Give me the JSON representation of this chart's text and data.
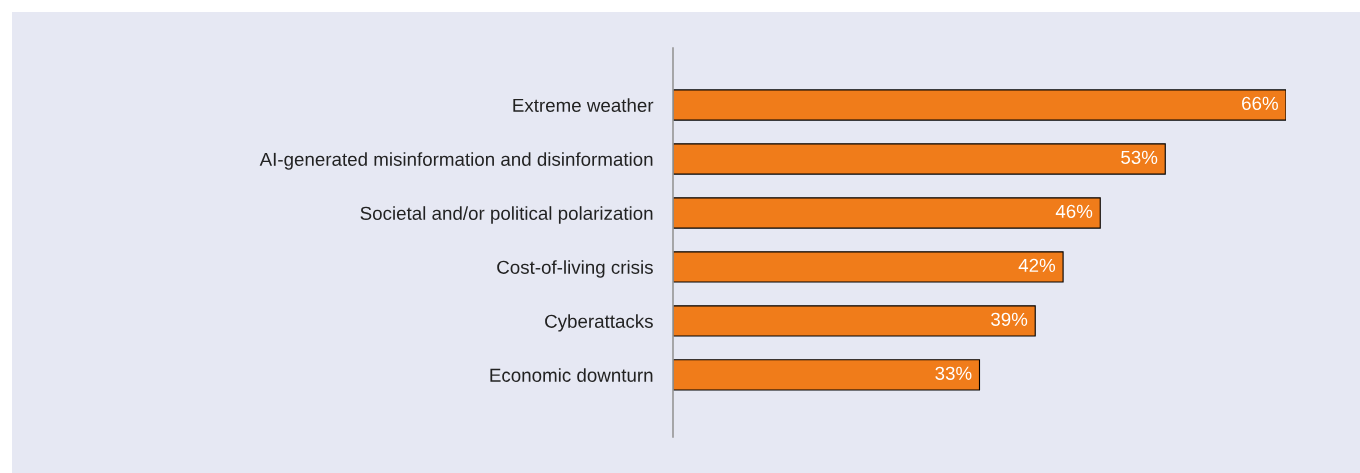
{
  "chart_data": {
    "type": "bar",
    "orientation": "horizontal",
    "categories": [
      "Extreme weather",
      "AI-generated misinformation and disinformation",
      "Societal and/or political polarization",
      "Cost-of-living crisis",
      "Cyberattacks",
      "Economic downturn"
    ],
    "values": [
      66,
      53,
      46,
      42,
      39,
      33
    ],
    "value_labels": [
      "66%",
      "53%",
      "46%",
      "42%",
      "39%",
      "33%"
    ],
    "color": "#f07c1a",
    "tick_labels": "y"
  }
}
